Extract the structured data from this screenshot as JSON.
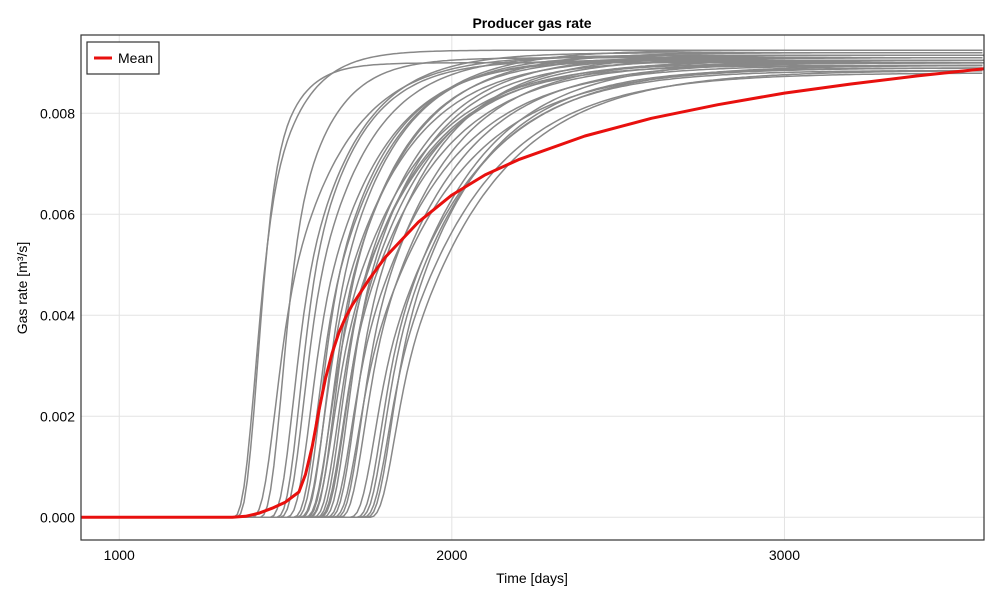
{
  "chart_data": {
    "type": "line",
    "title": "Producer gas rate",
    "xlabel": "Time [days]",
    "ylabel": "Gas rate [m³/s]",
    "xlim": [
      885,
      3600
    ],
    "ylim": [
      -0.00045,
      0.00955
    ],
    "x_ticks": [
      1000,
      2000,
      3000
    ],
    "x_tick_labels": [
      "1000",
      "2000",
      "3000"
    ],
    "y_ticks": [
      0,
      0.002,
      0.004,
      0.006,
      0.008
    ],
    "y_tick_labels": [
      "0.000",
      "0.002",
      "0.004",
      "0.006",
      "0.008"
    ],
    "grid": true,
    "legend": {
      "position": "top-left",
      "entries": [
        {
          "name": "Mean",
          "color": "#e8100e"
        }
      ]
    },
    "colors": {
      "ensemble": "#888888",
      "mean": "#e8100e"
    },
    "ensemble_series": [
      {
        "onset": 1340,
        "k": 0.01,
        "final": 0.00925
      },
      {
        "onset": 1350,
        "k": 0.013,
        "final": 0.009
      },
      {
        "onset": 1395,
        "k": 0.0058,
        "final": 0.00915
      },
      {
        "onset": 1420,
        "k": 0.009,
        "final": 0.0091
      },
      {
        "onset": 1450,
        "k": 0.0064,
        "final": 0.0092
      },
      {
        "onset": 1470,
        "k": 0.007,
        "final": 0.00905
      },
      {
        "onset": 1480,
        "k": 0.0061,
        "final": 0.00915
      },
      {
        "onset": 1500,
        "k": 0.0055,
        "final": 0.0091
      },
      {
        "onset": 1520,
        "k": 0.0053,
        "final": 0.00925
      },
      {
        "onset": 1530,
        "k": 0.006,
        "final": 0.00905
      },
      {
        "onset": 1540,
        "k": 0.0049,
        "final": 0.0091
      },
      {
        "onset": 1545,
        "k": 0.0058,
        "final": 0.00915
      },
      {
        "onset": 1555,
        "k": 0.0045,
        "final": 0.009
      },
      {
        "onset": 1560,
        "k": 0.0052,
        "final": 0.0092
      },
      {
        "onset": 1565,
        "k": 0.0043,
        "final": 0.00905
      },
      {
        "onset": 1570,
        "k": 0.0056,
        "final": 0.0091
      },
      {
        "onset": 1580,
        "k": 0.0047,
        "final": 0.00895
      },
      {
        "onset": 1590,
        "k": 0.005,
        "final": 0.00915
      },
      {
        "onset": 1595,
        "k": 0.0043,
        "final": 0.009
      },
      {
        "onset": 1600,
        "k": 0.0046,
        "final": 0.0091
      },
      {
        "onset": 1610,
        "k": 0.0052,
        "final": 0.00905
      },
      {
        "onset": 1620,
        "k": 0.0041,
        "final": 0.00895
      },
      {
        "onset": 1630,
        "k": 0.0048,
        "final": 0.00915
      },
      {
        "onset": 1640,
        "k": 0.0038,
        "final": 0.0089
      },
      {
        "onset": 1650,
        "k": 0.0046,
        "final": 0.00905
      },
      {
        "onset": 1660,
        "k": 0.0042,
        "final": 0.009
      },
      {
        "onset": 1690,
        "k": 0.0038,
        "final": 0.00895
      },
      {
        "onset": 1710,
        "k": 0.0041,
        "final": 0.00905
      },
      {
        "onset": 1720,
        "k": 0.0042,
        "final": 0.00885
      },
      {
        "onset": 1730,
        "k": 0.0038,
        "final": 0.0088
      },
      {
        "onset": 1740,
        "k": 0.0044,
        "final": 0.0089
      },
      {
        "onset": 1750,
        "k": 0.0037,
        "final": 0.00885
      }
    ],
    "mean_series": {
      "name": "Mean",
      "x": [
        885,
        1000,
        1200,
        1340,
        1380,
        1420,
        1460,
        1500,
        1540,
        1560,
        1580,
        1600,
        1620,
        1640,
        1660,
        1680,
        1700,
        1750,
        1800,
        1900,
        2000,
        2100,
        2200,
        2400,
        2600,
        2800,
        3000,
        3200,
        3400,
        3600
      ],
      "y": [
        0,
        0,
        0,
        0,
        2e-05,
        8e-05,
        0.00018,
        0.0003,
        0.0005,
        0.00085,
        0.0014,
        0.0021,
        0.00275,
        0.00325,
        0.00365,
        0.00395,
        0.0042,
        0.0047,
        0.00515,
        0.00585,
        0.00638,
        0.00678,
        0.00708,
        0.00755,
        0.0079,
        0.00817,
        0.0084,
        0.00858,
        0.00874,
        0.00888
      ]
    }
  }
}
